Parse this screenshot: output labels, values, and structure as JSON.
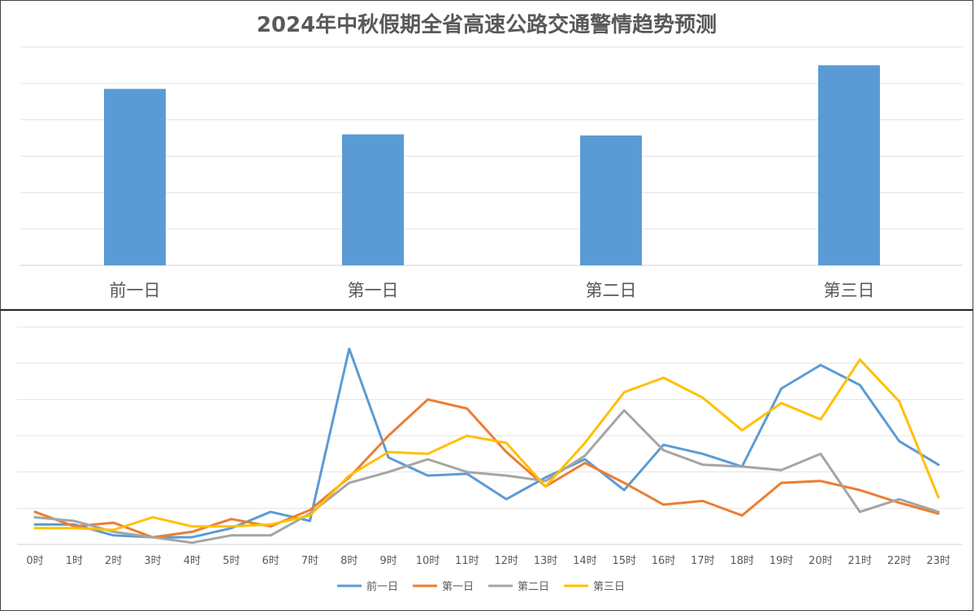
{
  "chart_data": [
    {
      "type": "bar",
      "title": "2024年中秋假期全省高速公路交通警情趋势预测",
      "categories": [
        "前一日",
        "第一日",
        "第二日",
        "第三日"
      ],
      "values": [
        4.85,
        3.6,
        3.57,
        5.5
      ],
      "ylim": [
        0,
        6
      ],
      "grid": true,
      "legend": "none",
      "color": "#5B9BD5"
    },
    {
      "type": "line",
      "categories": [
        "0时",
        "1时",
        "2时",
        "3时",
        "4时",
        "5时",
        "6时",
        "7时",
        "8时",
        "9时",
        "10时",
        "11时",
        "12时",
        "13时",
        "14时",
        "15时",
        "16时",
        "17时",
        "18时",
        "19时",
        "20时",
        "21时",
        "22时",
        "23时"
      ],
      "ylim": [
        0,
        6
      ],
      "grid": true,
      "legend": "bottom",
      "series": [
        {
          "name": "前一日",
          "color": "#5B9BD5",
          "values": [
            0.55,
            0.55,
            0.25,
            0.2,
            0.2,
            0.45,
            0.9,
            0.65,
            5.4,
            2.4,
            1.9,
            1.95,
            1.25,
            1.85,
            2.35,
            1.5,
            2.75,
            2.5,
            2.15,
            4.3,
            4.95,
            4.4,
            2.85,
            2.2
          ]
        },
        {
          "name": "第一日",
          "color": "#ED7D31",
          "values": [
            0.9,
            0.5,
            0.6,
            0.2,
            0.35,
            0.7,
            0.5,
            0.95,
            1.85,
            3.0,
            4.0,
            3.75,
            2.55,
            1.6,
            2.25,
            1.7,
            1.1,
            1.2,
            0.8,
            1.7,
            1.75,
            1.5,
            1.15,
            0.85
          ]
        },
        {
          "name": "第二日",
          "color": "#A5A5A5",
          "values": [
            0.75,
            0.65,
            0.35,
            0.2,
            0.05,
            0.25,
            0.25,
            0.85,
            1.7,
            2.0,
            2.35,
            2.0,
            1.9,
            1.75,
            2.45,
            3.7,
            2.6,
            2.2,
            2.15,
            2.05,
            2.5,
            0.9,
            1.25,
            0.9
          ]
        },
        {
          "name": "第三日",
          "color": "#FFC000",
          "values": [
            0.45,
            0.45,
            0.4,
            0.75,
            0.5,
            0.5,
            0.55,
            0.8,
            1.9,
            2.55,
            2.5,
            3.0,
            2.8,
            1.6,
            2.8,
            4.2,
            4.6,
            4.05,
            3.15,
            3.9,
            3.45,
            5.1,
            3.95,
            1.3
          ]
        }
      ]
    }
  ]
}
